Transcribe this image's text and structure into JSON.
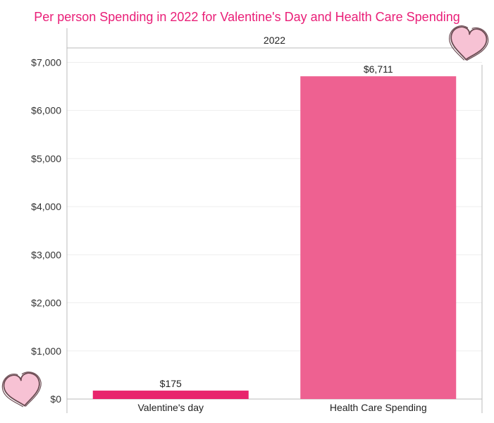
{
  "title": "Per person Spending in 2022 for Valentine's Day and Health Care Spending",
  "colors": {
    "title": "#e91e77",
    "bar_valentine": "#e8246c",
    "bar_health": "#ee6191",
    "gridline": "#eeeeee",
    "axis": "#bbbbbb"
  },
  "decorations": [
    "heart-icon",
    "heart-icon"
  ],
  "chart_data": {
    "type": "bar",
    "panel_label": "2022",
    "categories": [
      "Valentine's day",
      "Health Care Spending"
    ],
    "values": [
      175,
      6711
    ],
    "data_labels": [
      "$175",
      "$6,711"
    ],
    "ylim": [
      0,
      7300
    ],
    "yticks": [
      0,
      1000,
      2000,
      3000,
      4000,
      5000,
      6000,
      7000
    ],
    "ytick_labels": [
      "$0",
      "$1,000",
      "$2,000",
      "$3,000",
      "$4,000",
      "$5,000",
      "$6,000",
      "$7,000"
    ],
    "grid": true
  }
}
